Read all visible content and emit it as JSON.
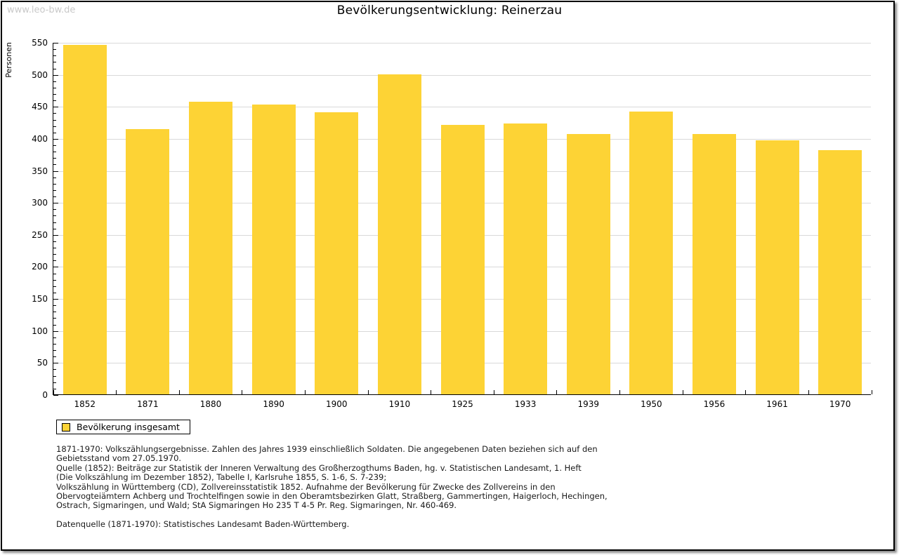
{
  "watermark": "www.leo-bw.de",
  "header": {
    "title": "Bevölkerungsentwicklung: Reinerzau"
  },
  "chart_data": {
    "type": "bar",
    "title": "Bevölkerungsentwicklung: Reinerzau",
    "xlabel": "",
    "ylabel": "Personen",
    "categories": [
      "1852",
      "1871",
      "1880",
      "1890",
      "1900",
      "1910",
      "1925",
      "1933",
      "1939",
      "1950",
      "1956",
      "1961",
      "1970"
    ],
    "values": [
      546,
      414,
      457,
      452,
      440,
      500,
      421,
      423,
      407,
      442,
      407,
      397,
      381
    ],
    "series_name": "Bevölkerung insgesamt",
    "ylim": [
      0,
      550
    ],
    "ytick_step": 50,
    "ytick_minor_step": 10,
    "grid": true,
    "legend_position": "bottom-left",
    "bar_color": "#fdd335",
    "gridline_color": "#d9d9d9"
  },
  "legend": {
    "label": "Bevölkerung insgesamt"
  },
  "footer": {
    "lines": [
      "1871-1970: Volkszählungsergebnisse. Zahlen des Jahres 1939 einschließlich Soldaten. Die angegebenen Daten beziehen sich auf den",
      "Gebietsstand vom 27.05.1970.",
      "Quelle (1852): Beiträge zur Statistik der Inneren Verwaltung des Großherzogthums Baden, hg. v. Statistischen Landesamt, 1. Heft",
      "(Die Volkszählung im Dezember 1852), Tabelle I, Karlsruhe 1855, S. 1-6, S. 7-239;",
      "Volkszählung in Württemberg (CD), Zollvereinsstatistik 1852. Aufnahme der Bevölkerung für Zwecke des Zollvereins in den",
      "Obervogteiämtern Achberg und Trochtelfingen sowie in den Oberamtsbezirken Glatt, Straßberg, Gammertingen, Haigerloch, Hechingen,",
      "Ostrach, Sigmaringen, und Wald; StA Sigmaringen Ho 235 T 4-5 Pr. Reg. Sigmaringen, Nr. 460-469."
    ],
    "datasource": "Datenquelle (1871-1970): Statistisches Landesamt Baden-Württemberg."
  },
  "colors": {
    "bar": "#fdd335",
    "gridline": "#d9d9d9",
    "watermark": "#c9c9c9",
    "frame_border": "#000000"
  }
}
